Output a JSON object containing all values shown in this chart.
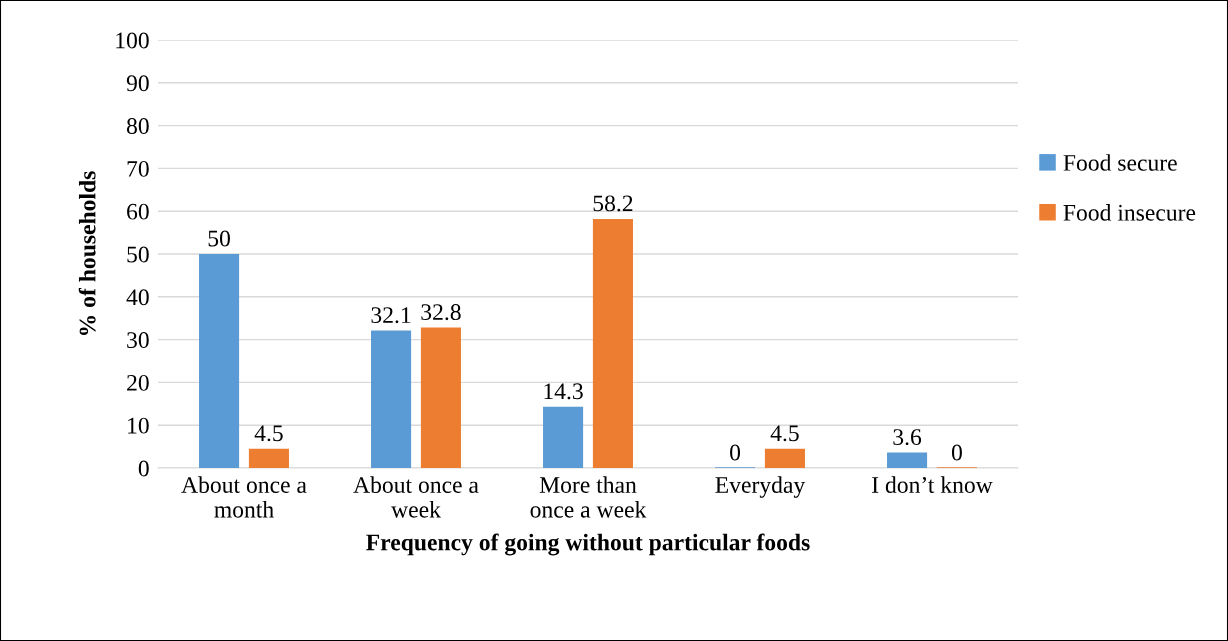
{
  "chart_data": {
    "type": "bar",
    "categories": [
      "About once a\nmonth",
      "About once a\nweek",
      "More than\nonce a week",
      "Everyday",
      "I don’t know"
    ],
    "series": [
      {
        "name": "Food secure",
        "color": "#5b9bd5",
        "values": [
          50,
          32.1,
          14.3,
          0,
          3.6
        ]
      },
      {
        "name": "Food insecure",
        "color": "#ed7d31",
        "values": [
          4.5,
          32.8,
          58.2,
          4.5,
          0
        ]
      }
    ],
    "xlabel": "Frequency of going without particular foods",
    "ylabel": "% of households",
    "ylim": [
      0,
      100
    ],
    "yticks": [
      0,
      10,
      20,
      30,
      40,
      50,
      60,
      70,
      80,
      90,
      100
    ],
    "grid": "y",
    "legend": "right",
    "data_labels": true
  }
}
